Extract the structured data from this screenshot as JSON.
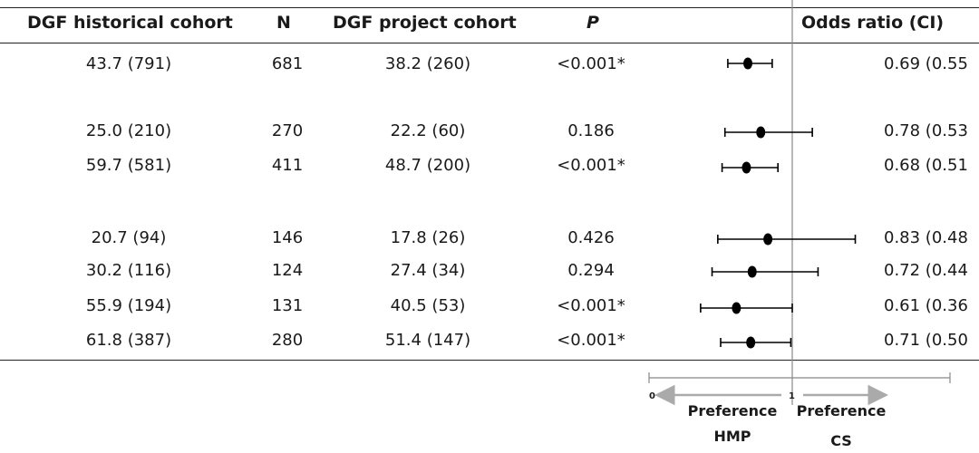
{
  "headers": {
    "historical": "DGF historical cohort",
    "n": "N",
    "project": "DGF project cohort",
    "p": "P",
    "or": "Odds ratio (CI)"
  },
  "rows": [
    {
      "historical": "43.7 (791)",
      "n": "681",
      "project": "38.2 (260)",
      "p": "<0.001*",
      "or_text": "0.69 (0.55"
    },
    {
      "historical": "25.0 (210)",
      "n": "270",
      "project": "22.2 (60)",
      "p": "0.186",
      "or_text": "0.78 (0.53"
    },
    {
      "historical": "59.7 (581)",
      "n": "411",
      "project": "48.7 (200)",
      "p": "<0.001*",
      "or_text": "0.68 (0.51"
    },
    {
      "historical": "20.7 (94)",
      "n": "146",
      "project": "17.8 (26)",
      "p": "0.426",
      "or_text": "0.83 (0.48"
    },
    {
      "historical": "30.2 (116)",
      "n": "124",
      "project": "27.4 (34)",
      "p": "0.294",
      "or_text": "0.72 (0.44"
    },
    {
      "historical": "55.9 (194)",
      "n": "131",
      "project": "40.5 (53)",
      "p": "<0.001*",
      "or_text": "0.61 (0.36"
    },
    {
      "historical": "61.8 (387)",
      "n": "280",
      "project": "51.4 (147)",
      "p": "<0.001*",
      "or_text": "0.71 (0.50"
    }
  ],
  "chart_data": {
    "type": "scatter",
    "x_axis": {
      "ticks": [
        "0",
        "1"
      ],
      "xlim": [
        0,
        1.6
      ],
      "reference_line": 1
    },
    "axis_labels": {
      "left_top": "Preference",
      "left_bottom": "HMP",
      "right_top": "Preference",
      "right_bottom": "CS"
    },
    "points": [
      {
        "or": 0.69,
        "lo": 0.55,
        "hi": 0.86
      },
      {
        "or": 0.78,
        "lo": 0.53,
        "hi": 1.14
      },
      {
        "or": 0.68,
        "lo": 0.51,
        "hi": 0.9
      },
      {
        "or": 0.83,
        "lo": 0.48,
        "hi": 1.44
      },
      {
        "or": 0.72,
        "lo": 0.44,
        "hi": 1.18
      },
      {
        "or": 0.61,
        "lo": 0.36,
        "hi": 1.0
      },
      {
        "or": 0.71,
        "lo": 0.5,
        "hi": 0.99
      }
    ],
    "colors": {
      "marker": "#000000",
      "axis": "#888888"
    }
  }
}
